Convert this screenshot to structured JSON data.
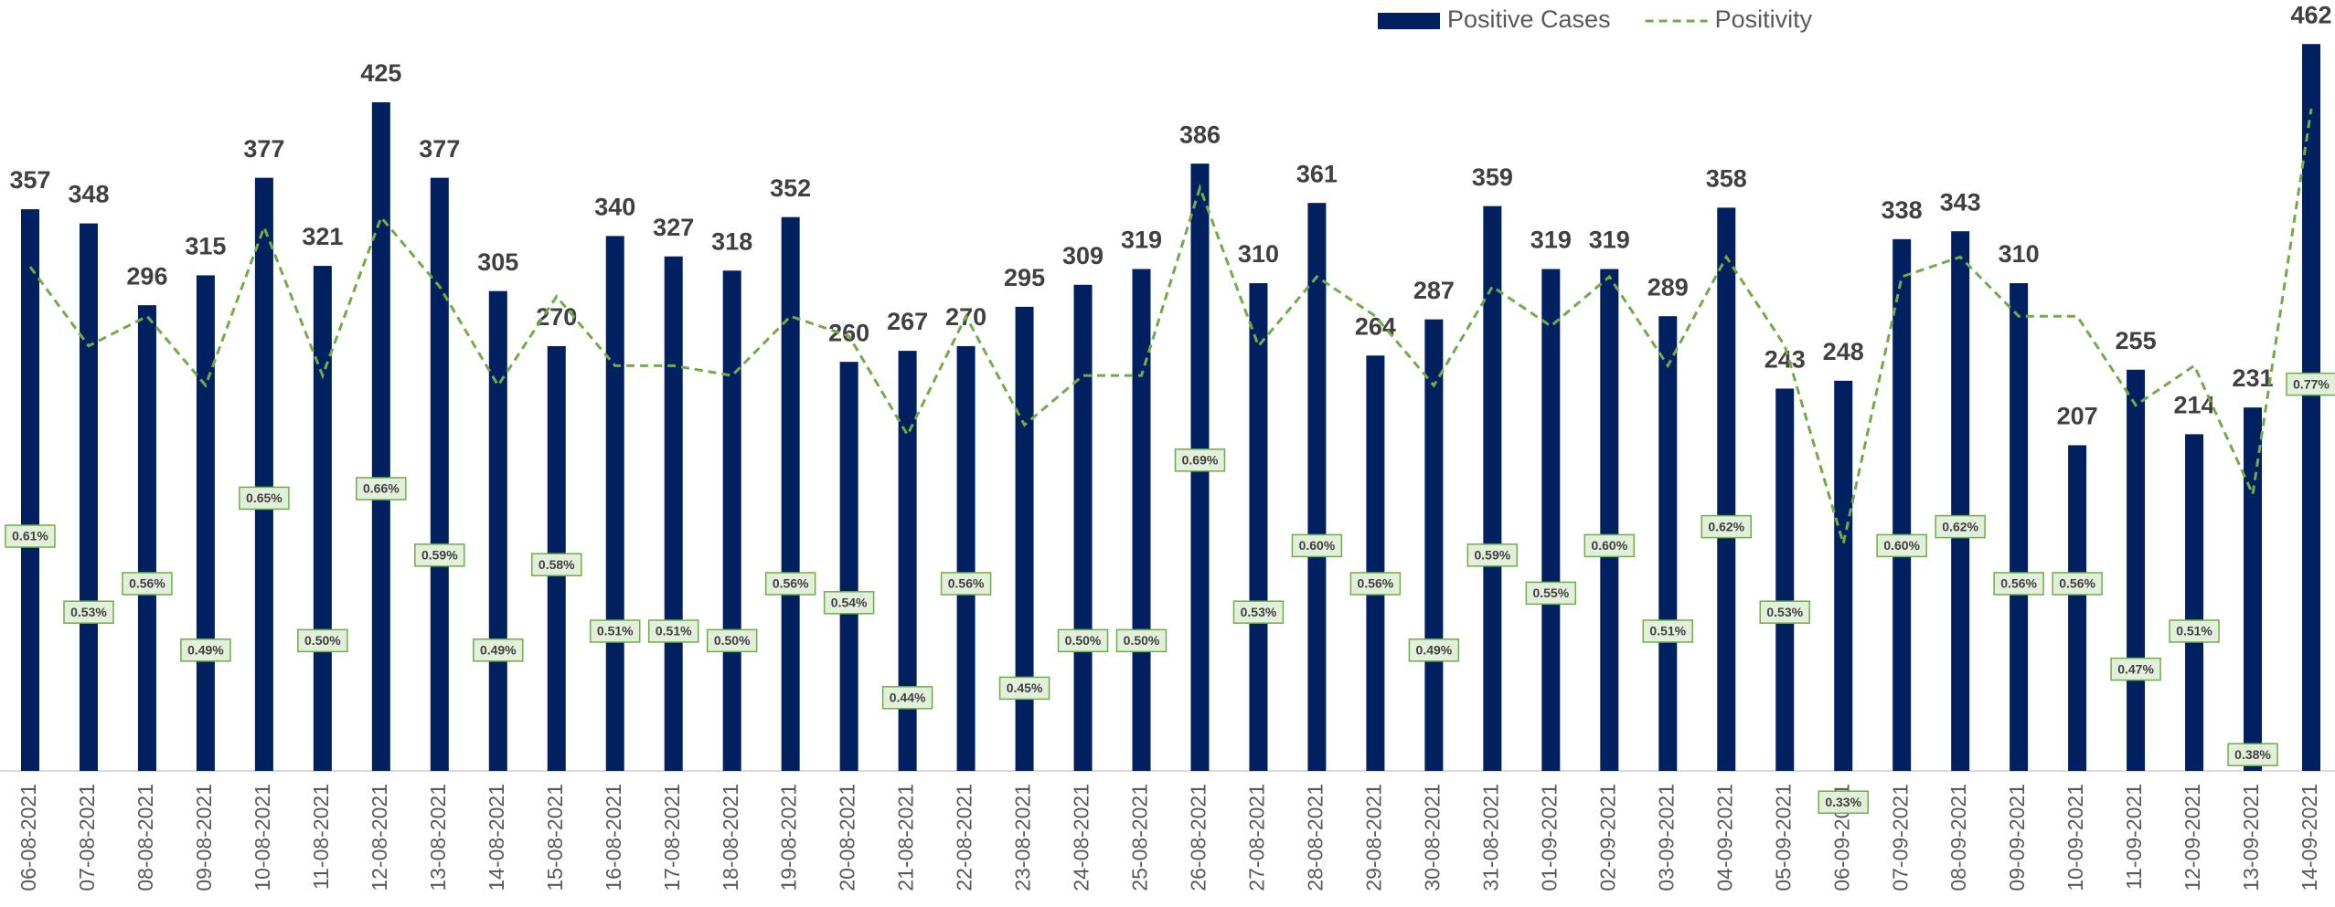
{
  "chart_data": {
    "type": "bar",
    "categories": [
      "06-08-2021",
      "07-08-2021",
      "08-08-2021",
      "09-08-2021",
      "10-08-2021",
      "11-08-2021",
      "12-08-2021",
      "13-08-2021",
      "14-08-2021",
      "15-08-2021",
      "16-08-2021",
      "17-08-2021",
      "18-08-2021",
      "19-08-2021",
      "20-08-2021",
      "21-08-2021",
      "22-08-2021",
      "23-08-2021",
      "24-08-2021",
      "25-08-2021",
      "26-08-2021",
      "27-08-2021",
      "28-08-2021",
      "29-08-2021",
      "30-08-2021",
      "31-08-2021",
      "01-09-2021",
      "02-09-2021",
      "03-09-2021",
      "04-09-2021",
      "05-09-2021",
      "06-09-2021",
      "07-09-2021",
      "08-09-2021",
      "09-09-2021",
      "10-09-2021",
      "11-09-2021",
      "12-09-2021",
      "13-09-2021",
      "14-09-2021"
    ],
    "series": [
      {
        "name": "Positive Cases",
        "color": "#002060",
        "values": [
          357,
          348,
          296,
          315,
          377,
          321,
          425,
          377,
          305,
          270,
          340,
          327,
          318,
          352,
          260,
          267,
          270,
          295,
          309,
          319,
          386,
          310,
          361,
          264,
          287,
          359,
          319,
          319,
          289,
          358,
          243,
          248,
          338,
          343,
          310,
          207,
          255,
          214,
          231,
          462
        ]
      },
      {
        "name": "Positivity",
        "color": "#70ad47",
        "axis": "y2",
        "line_style": "dashed",
        "values": [
          0.61,
          0.53,
          0.56,
          0.49,
          0.65,
          0.5,
          0.66,
          0.59,
          0.49,
          0.58,
          0.51,
          0.51,
          0.5,
          0.56,
          0.54,
          0.44,
          0.56,
          0.45,
          0.5,
          0.5,
          0.69,
          0.53,
          0.6,
          0.56,
          0.49,
          0.59,
          0.55,
          0.6,
          0.51,
          0.62,
          0.53,
          0.33,
          0.6,
          0.62,
          0.56,
          0.56,
          0.47,
          0.51,
          0.38,
          0.77
        ],
        "value_labels": [
          "0.61%",
          "0.53%",
          "0.56%",
          "0.49%",
          "0.65%",
          "0.50%",
          "0.66%",
          "0.59%",
          "0.49%",
          "0.58%",
          "0.51%",
          "0.51%",
          "0.50%",
          "0.56%",
          "0.54%",
          "0.44%",
          "0.56%",
          "0.45%",
          "0.50%",
          "0.50%",
          "0.69%",
          "0.53%",
          "0.60%",
          "0.56%",
          "0.49%",
          "0.59%",
          "0.55%",
          "0.60%",
          "0.51%",
          "0.62%",
          "0.53%",
          "0.33%",
          "0.60%",
          "0.62%",
          "0.56%",
          "0.56%",
          "0.47%",
          "0.51%",
          "0.38%",
          "0.77%"
        ]
      }
    ],
    "ylim": [
      0,
      490
    ],
    "y2lim": [
      0.1,
      0.88
    ],
    "legend": "top"
  }
}
